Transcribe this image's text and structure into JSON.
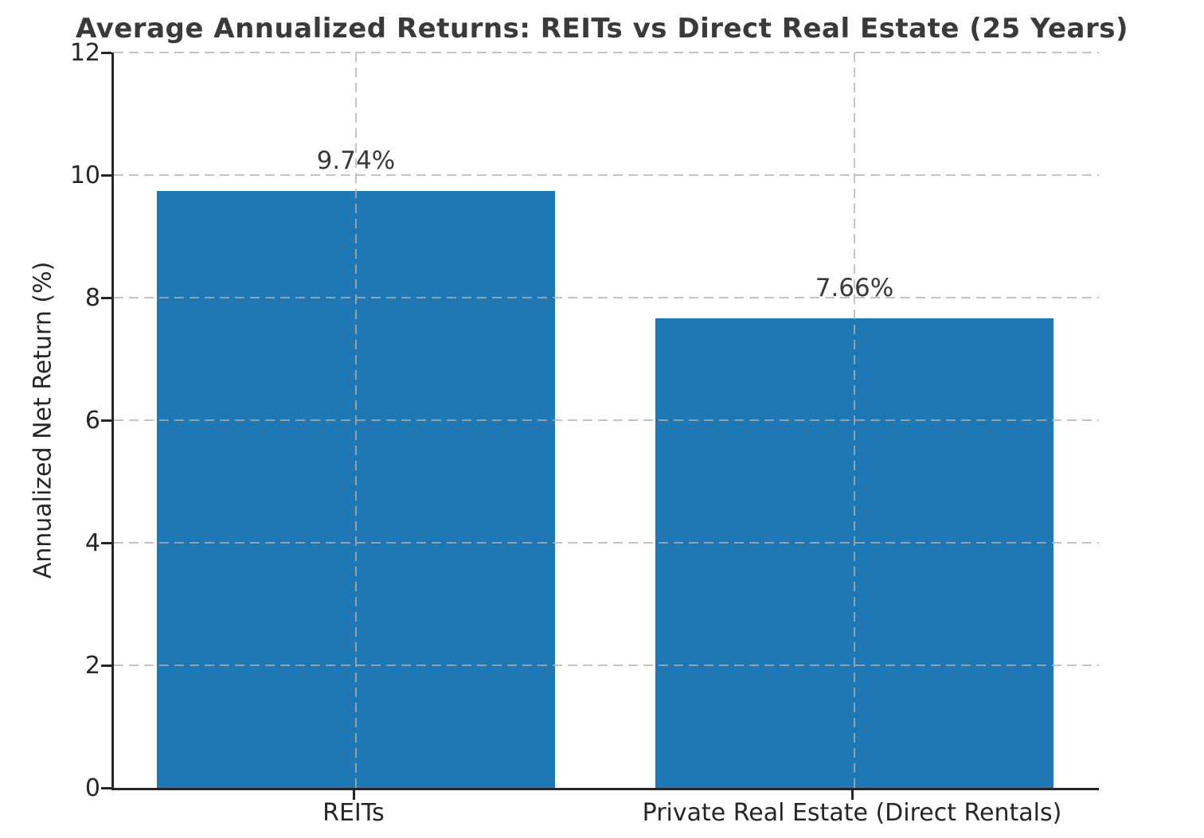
{
  "chart_data": {
    "type": "bar",
    "title": "Average Annualized Returns: REITs vs Direct Real Estate (25 Years)",
    "xlabel": "",
    "ylabel": "Annualized Net Return (%)",
    "categories": [
      "REITs",
      "Private Real Estate (Direct Rentals)"
    ],
    "values": [
      9.74,
      7.66
    ],
    "value_labels": [
      "9.74%",
      "7.66%"
    ],
    "ylim": [
      0,
      12
    ],
    "yticks": [
      0,
      2,
      4,
      6,
      8,
      10,
      12
    ],
    "grid": "dashed-both-axes-above-bars",
    "legend": "none",
    "colors": {
      "bar": "#1f77b4",
      "grid": "#b0b0b0",
      "spine": "#262626",
      "title_text": "#3a3a3a",
      "tick_text": "#262626",
      "background": "#ffffff"
    }
  }
}
